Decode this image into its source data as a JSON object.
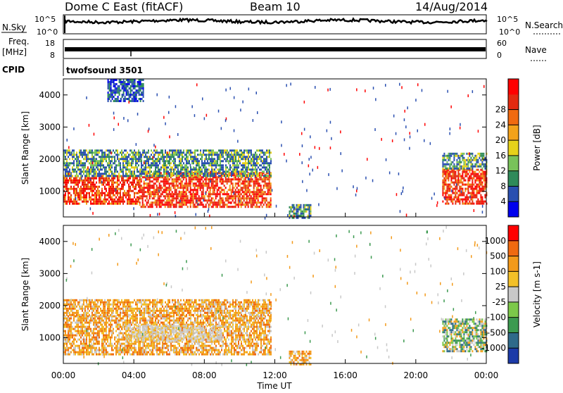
{
  "header": {
    "title": "Dome C East (fitACF)",
    "beam": "Beam 10",
    "date": "14/Aug/2014"
  },
  "chart_data": [
    {
      "type": "line",
      "name": "noise-panel",
      "left_label": "N.Sky",
      "right_label": "N.Search",
      "left_ticks": [
        "10^5",
        "10^0"
      ],
      "right_ticks": [
        "10^5",
        "10^0"
      ]
    },
    {
      "type": "line",
      "name": "frequency-panel",
      "left_label_top": "Freq.",
      "left_label_bottom": "[MHz]",
      "right_label": "Nave",
      "left_ticks": [
        "18",
        "8"
      ],
      "right_ticks": [
        "60",
        "0"
      ]
    },
    {
      "type": "table",
      "name": "cpid-panel",
      "label": "CPID",
      "value": "twofsound 3501"
    },
    {
      "type": "heatmap",
      "name": "power-panel",
      "ylabel": "Slant Range [km]",
      "ylim": [
        200,
        4500
      ],
      "yticks": [
        1000,
        2000,
        3000,
        4000
      ],
      "colorbar": {
        "label": "Power [dB]",
        "ticks": [
          "4",
          "8",
          "12",
          "16",
          "20",
          "24",
          "28"
        ],
        "colors": [
          "#0000ee",
          "#2a4fb0",
          "#2f8a5a",
          "#78c25a",
          "#e6d21a",
          "#f3a21a",
          "#f06a10",
          "#e32a10",
          "#ff0000"
        ]
      },
      "echo_regions": [
        {
          "t0": 0.0,
          "t1": 4.3,
          "r0": 600,
          "r1": 1500,
          "level": "high"
        },
        {
          "t0": 4.3,
          "t1": 11.8,
          "r0": 500,
          "r1": 1600,
          "level": "high"
        },
        {
          "t0": 0.0,
          "t1": 11.8,
          "r0": 1500,
          "r1": 2300,
          "level": "mid"
        },
        {
          "t0": 2.5,
          "t1": 4.5,
          "r0": 3800,
          "r1": 4500,
          "level": "low"
        },
        {
          "t0": 12.8,
          "t1": 14.0,
          "r0": 200,
          "r1": 600,
          "level": "mid"
        },
        {
          "t0": 21.5,
          "t1": 24.0,
          "r0": 600,
          "r1": 1700,
          "level": "high"
        },
        {
          "t0": 21.5,
          "t1": 24.0,
          "r0": 1700,
          "r1": 2200,
          "level": "mid"
        }
      ]
    },
    {
      "type": "heatmap",
      "name": "velocity-panel",
      "ylabel": "Slant Range [km]",
      "ylim": [
        200,
        4500
      ],
      "yticks": [
        1000,
        2000,
        3000,
        4000
      ],
      "xticks": [
        "00:00",
        "04:00",
        "08:00",
        "12:00",
        "16:00",
        "20:00",
        "00:00"
      ],
      "xlabel": "Time UT",
      "xlim": [
        0,
        24
      ],
      "colorbar": {
        "label": "Velocity [m s-1]",
        "ticks": [
          "1000",
          "500",
          "100",
          "25",
          "-25",
          "-100",
          "-500",
          "-1000"
        ],
        "colors": [
          "#1c3aa8",
          "#2f6a8a",
          "#3c9a50",
          "#7cc84a",
          "#c8c8c8",
          "#f3c028",
          "#f39a1a",
          "#f06a10",
          "#ff0000"
        ]
      },
      "echo_regions": [
        {
          "t0": 0.0,
          "t1": 11.8,
          "r0": 500,
          "r1": 1700,
          "level": "orange"
        },
        {
          "t0": 3.5,
          "t1": 9.0,
          "r0": 900,
          "r1": 1400,
          "level": "grey"
        },
        {
          "t0": 0.0,
          "t1": 11.8,
          "r0": 1700,
          "r1": 2200,
          "level": "orange"
        },
        {
          "t0": 12.8,
          "t1": 14.0,
          "r0": 200,
          "r1": 600,
          "level": "orange"
        },
        {
          "t0": 21.5,
          "t1": 24.0,
          "r0": 600,
          "r1": 1600,
          "level": "green"
        }
      ]
    }
  ]
}
